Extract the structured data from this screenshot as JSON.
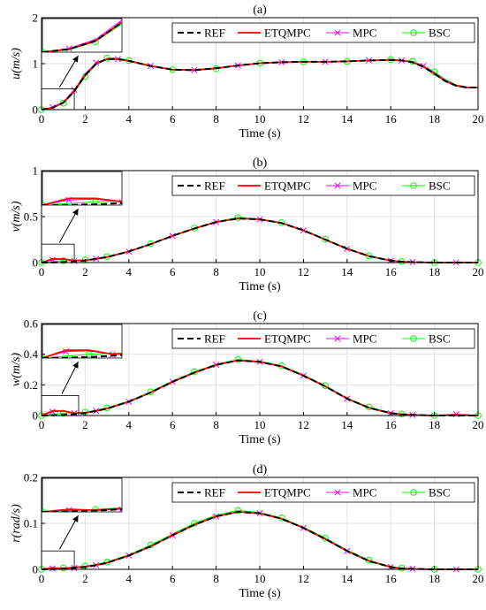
{
  "style": {
    "colors": {
      "REF": "#000000",
      "ETQMPC": "#ff0000",
      "MPC": "#ff00ff",
      "BSC": "#00ff00"
    },
    "grid": true,
    "legend": "top-right",
    "inset": "top-left zoom of region near t=0 with arrow"
  },
  "chart_data": [
    {
      "type": "line",
      "title": "(a)",
      "xlabel": "Time (s)",
      "ylabel": "u(m/s)",
      "xlim": [
        0,
        20
      ],
      "ylim": [
        0,
        2
      ],
      "xticks": [
        0,
        2,
        4,
        6,
        8,
        10,
        12,
        14,
        16,
        18,
        20
      ],
      "yticks": [
        0,
        1,
        2
      ],
      "legend": [
        "REF",
        "ETQMPC",
        "MPC",
        "BSC"
      ],
      "x": [
        0,
        0.5,
        1,
        1.5,
        2,
        2.5,
        3,
        3.5,
        4,
        5,
        6,
        7,
        8,
        9,
        10,
        11,
        12,
        13,
        14,
        15,
        16,
        16.5,
        17,
        17.5,
        18,
        18.5,
        19,
        19.5,
        20
      ],
      "series": [
        {
          "name": "REF",
          "values": [
            0,
            0.04,
            0.15,
            0.4,
            0.75,
            1.0,
            1.1,
            1.1,
            1.06,
            0.95,
            0.87,
            0.86,
            0.9,
            0.96,
            1.01,
            1.03,
            1.04,
            1.04,
            1.05,
            1.07,
            1.08,
            1.07,
            1.03,
            0.93,
            0.78,
            0.62,
            0.52,
            0.48,
            0.48
          ]
        },
        {
          "name": "ETQMPC",
          "values": [
            0,
            0.04,
            0.15,
            0.4,
            0.75,
            1.0,
            1.1,
            1.1,
            1.06,
            0.95,
            0.87,
            0.86,
            0.9,
            0.96,
            1.01,
            1.03,
            1.04,
            1.04,
            1.05,
            1.07,
            1.08,
            1.07,
            1.03,
            0.93,
            0.78,
            0.62,
            0.52,
            0.48,
            0.48
          ]
        },
        {
          "name": "MPC",
          "values": [
            0,
            0.05,
            0.17,
            0.43,
            0.78,
            1.02,
            1.11,
            1.1,
            1.06,
            0.95,
            0.87,
            0.86,
            0.9,
            0.96,
            1.01,
            1.03,
            1.04,
            1.04,
            1.05,
            1.07,
            1.08,
            1.07,
            1.04,
            0.95,
            0.8,
            0.64,
            0.53,
            0.49,
            0.48
          ]
        },
        {
          "name": "BSC",
          "values": [
            0,
            0.03,
            0.14,
            0.38,
            0.72,
            0.98,
            1.12,
            1.12,
            1.07,
            0.96,
            0.87,
            0.85,
            0.89,
            0.96,
            1.01,
            1.03,
            1.04,
            1.04,
            1.05,
            1.07,
            1.09,
            1.08,
            1.05,
            0.96,
            0.82,
            0.66,
            0.54,
            0.49,
            0.48
          ]
        }
      ],
      "inset_region": {
        "xlim": [
          0,
          1.5
        ],
        "ylim": [
          0,
          0.45
        ]
      }
    },
    {
      "type": "line",
      "title": "(b)",
      "xlabel": "Time (s)",
      "ylabel": "v(m/s)",
      "xlim": [
        0,
        20
      ],
      "ylim": [
        0,
        1
      ],
      "xticks": [
        0,
        2,
        4,
        6,
        8,
        10,
        12,
        14,
        16,
        18,
        20
      ],
      "yticks": [
        0,
        0.5,
        1
      ],
      "legend": [
        "REF",
        "ETQMPC",
        "MPC",
        "BSC"
      ],
      "x": [
        0,
        0.5,
        1,
        1.5,
        2,
        2.5,
        3,
        4,
        5,
        6,
        7,
        8,
        9,
        10,
        11,
        12,
        13,
        14,
        15,
        16,
        16.5,
        17,
        18,
        19,
        20
      ],
      "series": [
        {
          "name": "REF",
          "values": [
            0,
            0.001,
            0.005,
            0.012,
            0.022,
            0.04,
            0.06,
            0.12,
            0.2,
            0.29,
            0.37,
            0.44,
            0.48,
            0.47,
            0.43,
            0.35,
            0.25,
            0.15,
            0.07,
            0.02,
            0.01,
            0.005,
            0,
            0,
            0
          ]
        },
        {
          "name": "ETQMPC",
          "values": [
            0,
            0.04,
            0.04,
            0.02,
            0.025,
            0.04,
            0.06,
            0.12,
            0.2,
            0.29,
            0.37,
            0.44,
            0.48,
            0.47,
            0.43,
            0.35,
            0.25,
            0.15,
            0.07,
            0.02,
            0.01,
            0.005,
            0,
            0,
            0
          ]
        },
        {
          "name": "MPC",
          "values": [
            0,
            0.03,
            0.035,
            0.018,
            0.023,
            0.04,
            0.06,
            0.12,
            0.2,
            0.29,
            0.37,
            0.44,
            0.48,
            0.47,
            0.43,
            0.35,
            0.25,
            0.15,
            0.07,
            0.02,
            0.01,
            0.005,
            0,
            0,
            0
          ]
        },
        {
          "name": "BSC",
          "values": [
            0,
            0.01,
            0.02,
            0.025,
            0.03,
            0.045,
            0.065,
            0.125,
            0.205,
            0.295,
            0.375,
            0.445,
            0.49,
            0.475,
            0.435,
            0.355,
            0.255,
            0.155,
            0.075,
            0.025,
            0.012,
            0.006,
            0,
            0,
            0
          ]
        }
      ],
      "inset_region": {
        "xlim": [
          0,
          1.5
        ],
        "ylim": [
          0,
          0.2
        ]
      }
    },
    {
      "type": "line",
      "title": "(c)",
      "xlabel": "Time (s)",
      "ylabel": "w(m/s)",
      "xlim": [
        0,
        20
      ],
      "ylim": [
        0,
        0.6
      ],
      "xticks": [
        0,
        2,
        4,
        6,
        8,
        10,
        12,
        14,
        16,
        18,
        20
      ],
      "yticks": [
        0,
        0.2,
        0.4,
        0.6
      ],
      "legend": [
        "REF",
        "ETQMPC",
        "MPC",
        "BSC"
      ],
      "x": [
        0,
        0.5,
        1,
        1.5,
        2,
        2.5,
        3,
        4,
        5,
        6,
        7,
        8,
        9,
        10,
        11,
        12,
        13,
        14,
        15,
        16,
        16.5,
        17,
        18,
        19,
        20
      ],
      "series": [
        {
          "name": "REF",
          "values": [
            0,
            0.001,
            0.004,
            0.009,
            0.016,
            0.03,
            0.045,
            0.09,
            0.15,
            0.22,
            0.28,
            0.33,
            0.36,
            0.35,
            0.32,
            0.26,
            0.19,
            0.11,
            0.05,
            0.015,
            0.008,
            0.004,
            0,
            0,
            0
          ]
        },
        {
          "name": "ETQMPC",
          "values": [
            0,
            0.03,
            0.03,
            0.015,
            0.018,
            0.03,
            0.045,
            0.09,
            0.15,
            0.22,
            0.28,
            0.33,
            0.36,
            0.35,
            0.32,
            0.26,
            0.19,
            0.11,
            0.05,
            0.015,
            0.008,
            0.004,
            0,
            0.005,
            0
          ]
        },
        {
          "name": "MPC",
          "values": [
            0,
            0.025,
            0.028,
            0.014,
            0.017,
            0.03,
            0.045,
            0.09,
            0.15,
            0.22,
            0.28,
            0.33,
            0.36,
            0.35,
            0.32,
            0.26,
            0.19,
            0.11,
            0.05,
            0.015,
            0.008,
            0.004,
            0,
            0.008,
            0
          ]
        },
        {
          "name": "BSC",
          "values": [
            0,
            0.008,
            0.015,
            0.018,
            0.022,
            0.034,
            0.05,
            0.095,
            0.155,
            0.225,
            0.285,
            0.335,
            0.365,
            0.355,
            0.325,
            0.265,
            0.195,
            0.115,
            0.055,
            0.018,
            0.01,
            0.005,
            0,
            0,
            0
          ]
        }
      ],
      "inset_region": {
        "xlim": [
          0,
          1.7
        ],
        "ylim": [
          0,
          0.13
        ]
      }
    },
    {
      "type": "line",
      "title": "(d)",
      "xlabel": "Time (s)",
      "ylabel": "r(rad/s)",
      "xlim": [
        0,
        20
      ],
      "ylim": [
        0,
        0.2
      ],
      "xticks": [
        0,
        2,
        4,
        6,
        8,
        10,
        12,
        14,
        16,
        18,
        20
      ],
      "yticks": [
        0,
        0.1,
        0.2
      ],
      "legend": [
        "REF",
        "ETQMPC",
        "MPC",
        "BSC"
      ],
      "x": [
        0,
        0.5,
        1,
        1.5,
        2,
        2.5,
        3,
        4,
        5,
        6,
        7,
        8,
        9,
        10,
        11,
        12,
        13,
        14,
        15,
        16,
        16.5,
        17,
        18,
        19,
        20
      ],
      "series": [
        {
          "name": "REF",
          "values": [
            0,
            0.0005,
            0.0015,
            0.003,
            0.005,
            0.009,
            0.014,
            0.03,
            0.05,
            0.074,
            0.097,
            0.115,
            0.125,
            0.122,
            0.11,
            0.09,
            0.066,
            0.04,
            0.018,
            0.005,
            0.002,
            0.001,
            0,
            0,
            0
          ]
        },
        {
          "name": "ETQMPC",
          "values": [
            0,
            0.003,
            0.002,
            0.004,
            0.006,
            0.009,
            0.014,
            0.03,
            0.05,
            0.074,
            0.097,
            0.115,
            0.125,
            0.122,
            0.11,
            0.09,
            0.066,
            0.04,
            0.018,
            0.005,
            0.002,
            0.001,
            0,
            0,
            0
          ]
        },
        {
          "name": "MPC",
          "values": [
            0,
            0.002,
            0.002,
            0.003,
            0.005,
            0.009,
            0.014,
            0.03,
            0.05,
            0.074,
            0.097,
            0.115,
            0.125,
            0.122,
            0.11,
            0.09,
            0.066,
            0.04,
            0.018,
            0.005,
            0.002,
            0.001,
            0,
            0,
            0
          ]
        },
        {
          "name": "BSC",
          "values": [
            0,
            0.001,
            0.003,
            0.005,
            0.007,
            0.011,
            0.016,
            0.032,
            0.053,
            0.077,
            0.1,
            0.118,
            0.128,
            0.124,
            0.112,
            0.092,
            0.068,
            0.042,
            0.02,
            0.006,
            0.003,
            0.001,
            0,
            0,
            0
          ]
        }
      ],
      "inset_region": {
        "xlim": [
          0,
          1.5
        ],
        "ylim": [
          0,
          0.04
        ]
      }
    }
  ]
}
